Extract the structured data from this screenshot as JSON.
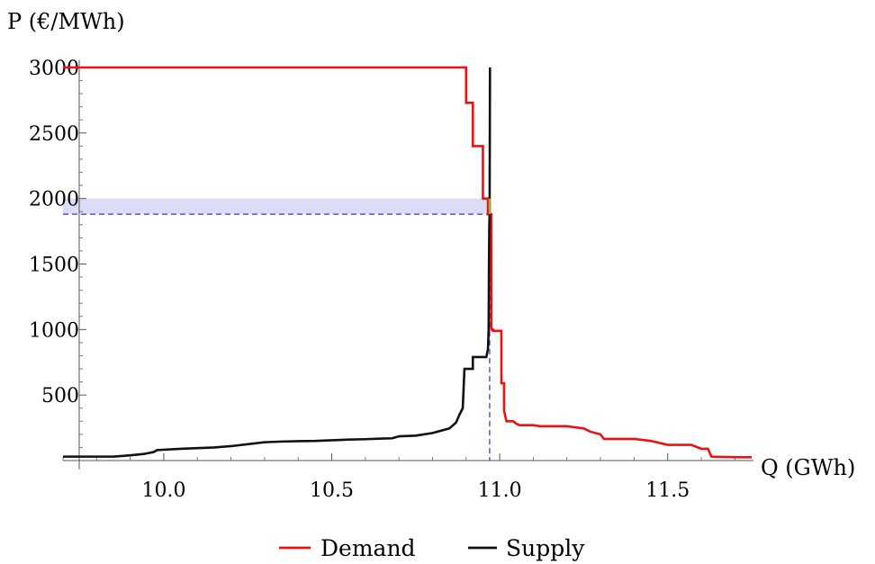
{
  "chart_data": {
    "type": "line",
    "title": "",
    "xlabel": "Q (GWh)",
    "ylabel": "P (€/MWh)",
    "xlim": [
      9.7,
      11.75
    ],
    "ylim": [
      0,
      3000
    ],
    "x_ticks": [
      {
        "value": 10.0,
        "label": "10.0"
      },
      {
        "value": 10.5,
        "label": "10.5"
      },
      {
        "value": 11.0,
        "label": "11.0"
      },
      {
        "value": 11.5,
        "label": "11.5"
      }
    ],
    "y_ticks": [
      {
        "value": 500,
        "label": "500"
      },
      {
        "value": 1000,
        "label": "1000"
      },
      {
        "value": 1500,
        "label": "1500"
      },
      {
        "value": 2000,
        "label": "2000"
      },
      {
        "value": 2500,
        "label": "2500"
      },
      {
        "value": 3000,
        "label": "3000"
      }
    ],
    "grid": false,
    "legend": "bottom-center",
    "equilibrium": {
      "q": 10.97,
      "p": 1880
    },
    "shaded_band": {
      "p_low": 1880,
      "p_high": 2000
    },
    "series": [
      {
        "name": "Demand",
        "color": "#ee1111",
        "step": true,
        "points": [
          [
            9.7,
            3000
          ],
          [
            10.9,
            3000
          ],
          [
            10.9,
            2730
          ],
          [
            10.92,
            2730
          ],
          [
            10.92,
            2400
          ],
          [
            10.95,
            2400
          ],
          [
            10.95,
            2000
          ],
          [
            10.965,
            2000
          ],
          [
            10.965,
            1880
          ],
          [
            10.975,
            1880
          ],
          [
            10.975,
            1000
          ],
          [
            10.98,
            1000
          ],
          [
            10.98,
            990
          ],
          [
            11.005,
            990
          ],
          [
            11.005,
            590
          ],
          [
            11.013,
            590
          ],
          [
            11.013,
            380
          ],
          [
            11.02,
            300
          ],
          [
            11.04,
            300
          ],
          [
            11.05,
            280
          ],
          [
            11.06,
            270
          ],
          [
            11.1,
            270
          ],
          [
            11.12,
            262
          ],
          [
            11.2,
            262
          ],
          [
            11.25,
            245
          ],
          [
            11.27,
            220
          ],
          [
            11.3,
            200
          ],
          [
            11.31,
            165
          ],
          [
            11.4,
            165
          ],
          [
            11.45,
            150
          ],
          [
            11.5,
            120
          ],
          [
            11.57,
            120
          ],
          [
            11.6,
            90
          ],
          [
            11.62,
            90
          ],
          [
            11.63,
            30
          ],
          [
            11.7,
            25
          ],
          [
            11.75,
            25
          ]
        ]
      },
      {
        "name": "Supply",
        "color": "#111111",
        "step": false,
        "points": [
          [
            9.7,
            30
          ],
          [
            9.85,
            30
          ],
          [
            9.9,
            40
          ],
          [
            9.94,
            50
          ],
          [
            9.97,
            65
          ],
          [
            9.98,
            80
          ],
          [
            10.05,
            90
          ],
          [
            10.1,
            95
          ],
          [
            10.15,
            100
          ],
          [
            10.2,
            110
          ],
          [
            10.25,
            125
          ],
          [
            10.3,
            140
          ],
          [
            10.35,
            145
          ],
          [
            10.4,
            148
          ],
          [
            10.45,
            150
          ],
          [
            10.5,
            155
          ],
          [
            10.55,
            160
          ],
          [
            10.6,
            163
          ],
          [
            10.65,
            168
          ],
          [
            10.68,
            170
          ],
          [
            10.7,
            185
          ],
          [
            10.75,
            190
          ],
          [
            10.8,
            210
          ],
          [
            10.85,
            245
          ],
          [
            10.87,
            290
          ],
          [
            10.88,
            350
          ],
          [
            10.89,
            400
          ],
          [
            10.895,
            700
          ],
          [
            10.92,
            700
          ],
          [
            10.92,
            790
          ],
          [
            10.96,
            790
          ],
          [
            10.965,
            850
          ],
          [
            10.967,
            1000
          ],
          [
            10.968,
            1500
          ],
          [
            10.969,
            1800
          ],
          [
            10.97,
            1880
          ],
          [
            10.97,
            2000
          ],
          [
            10.971,
            3000
          ]
        ]
      }
    ]
  }
}
